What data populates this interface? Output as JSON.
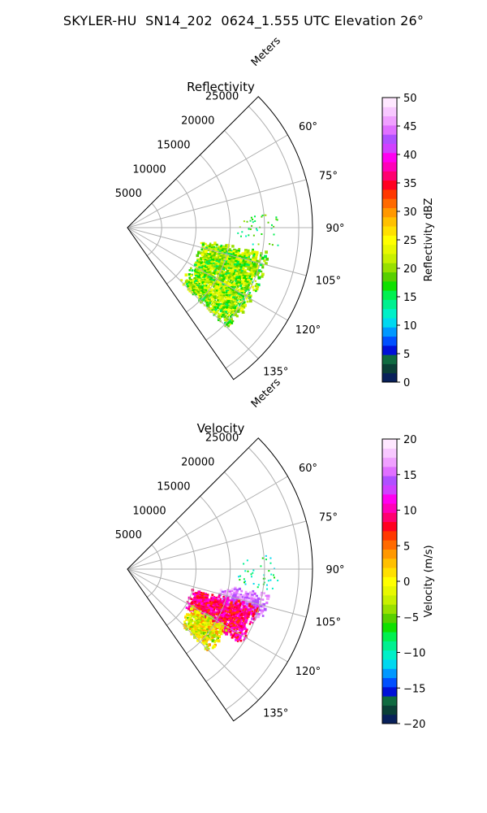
{
  "figure": {
    "title": "SKYLER-HU  SN14_202  0624_1.555 UTC Elevation 26°"
  },
  "chart_data": [
    {
      "type": "heatmap",
      "subtype": "polar-sector (radar PPI)",
      "title": "Reflectivity",
      "radial_axis_label": "Meters",
      "radial_ticks": [
        5000,
        10000,
        15000,
        20000,
        25000
      ],
      "radial_tick_labels": [
        "5000",
        "10000",
        "15000",
        "20000",
        "25000"
      ],
      "radial_range": [
        0,
        27000
      ],
      "angle_range_deg": [
        45,
        145
      ],
      "angle_ticks": [
        60,
        75,
        90,
        105,
        120,
        135
      ],
      "angle_tick_labels": [
        "60°",
        "75°",
        "90°",
        "105°",
        "120°",
        "135°"
      ],
      "grid": true,
      "colorbar": {
        "label": "Reflectivity dBZ",
        "range": [
          0,
          50
        ],
        "ticks": [
          0,
          5,
          10,
          15,
          20,
          25,
          30,
          35,
          40,
          45,
          50
        ],
        "tick_labels": [
          "0",
          "5",
          "10",
          "15",
          "20",
          "25",
          "30",
          "35",
          "40",
          "45",
          "50"
        ],
        "colors": [
          "#08205a",
          "#0a3f36",
          "#0f6a40",
          "#0010d8",
          "#0050ff",
          "#0098ff",
          "#00d8f0",
          "#00f0c8",
          "#00f090",
          "#00f050",
          "#10e000",
          "#58d000",
          "#98e000",
          "#c8f000",
          "#e8f800",
          "#ffff00",
          "#ffe000",
          "#ffc000",
          "#ff9800",
          "#ff6a00",
          "#ff3800",
          "#ff0020",
          "#ff0070",
          "#ff00b8",
          "#ff00f0",
          "#d040ff",
          "#b050ff",
          "#e070ff",
          "#f0a0ff",
          "#f8c8ff",
          "#ffe8ff"
        ],
        "position": "right"
      },
      "echo_regions": [
        {
          "az_range": [
            100,
            136
          ],
          "r_range": [
            11000,
            21000
          ],
          "value_range_dbz": [
            15,
            25
          ],
          "typical_dbz": 21
        }
      ]
    },
    {
      "type": "heatmap",
      "subtype": "polar-sector (radar PPI)",
      "title": "Velocity",
      "radial_axis_label": "Meters",
      "radial_ticks": [
        5000,
        10000,
        15000,
        20000,
        25000
      ],
      "radial_tick_labels": [
        "5000",
        "10000",
        "15000",
        "20000",
        "25000"
      ],
      "radial_range": [
        0,
        27000
      ],
      "angle_range_deg": [
        45,
        145
      ],
      "angle_ticks": [
        60,
        75,
        90,
        105,
        120,
        135
      ],
      "angle_tick_labels": [
        "60°",
        "75°",
        "90°",
        "105°",
        "120°",
        "135°"
      ],
      "grid": true,
      "colorbar": {
        "label": "Velocity (m/s)",
        "range": [
          -20,
          20
        ],
        "ticks": [
          -20,
          -15,
          -10,
          -5,
          0,
          5,
          10,
          15,
          20
        ],
        "tick_labels": [
          "−20",
          "−15",
          "−10",
          "−5",
          "0",
          "5",
          "10",
          "15",
          "20"
        ],
        "colors": [
          "#08205a",
          "#0a3f36",
          "#0f6a40",
          "#0010d8",
          "#0050ff",
          "#0098ff",
          "#00d8f0",
          "#00f0c8",
          "#00f090",
          "#00f050",
          "#10e000",
          "#58d000",
          "#98e000",
          "#c8f000",
          "#e8f800",
          "#ffff00",
          "#ffe000",
          "#ffc000",
          "#ff9800",
          "#ff6a00",
          "#ff3800",
          "#ff0020",
          "#ff0070",
          "#ff00b8",
          "#ff00f0",
          "#d040ff",
          "#b050ff",
          "#e070ff",
          "#f0a0ff",
          "#f8c8ff",
          "#ffe8ff"
        ],
        "position": "right"
      },
      "echo_regions": [
        {
          "az_range": [
            100,
            112
          ],
          "r_range": [
            14000,
            21000
          ],
          "value_range_ms": [
            13,
            18
          ],
          "typical_ms": 15
        },
        {
          "az_range": [
            106,
            124
          ],
          "r_range": [
            10000,
            20000
          ],
          "value_range_ms": [
            6,
            12
          ],
          "typical_ms": 9
        },
        {
          "az_range": [
            120,
            136
          ],
          "r_range": [
            11000,
            17000
          ],
          "value_range_ms": [
            -5,
            4
          ],
          "typical_ms": -1
        }
      ]
    }
  ]
}
